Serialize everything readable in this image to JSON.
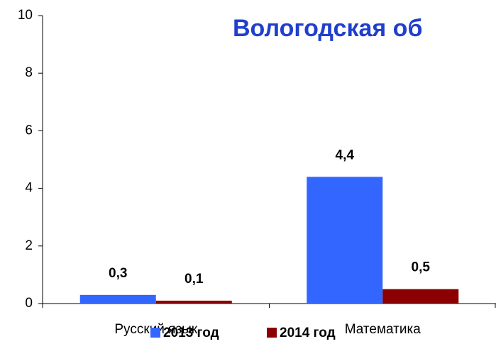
{
  "chart_data": {
    "type": "bar",
    "title": "Вологодская об",
    "categories": [
      "Русский язык",
      "Математика"
    ],
    "series": [
      {
        "name": "2013 год",
        "color": "#3366ff",
        "values": [
          0.3,
          4.4
        ],
        "value_labels": [
          "0,3",
          "4,4"
        ]
      },
      {
        "name": "2014 год",
        "color": "#8b0000",
        "values": [
          0.1,
          0.5
        ],
        "value_labels": [
          "0,1",
          "0,5"
        ]
      }
    ],
    "ylim": [
      0,
      10
    ],
    "yticks": [
      0,
      2,
      4,
      6,
      8,
      10
    ],
    "legend": "bottom"
  }
}
